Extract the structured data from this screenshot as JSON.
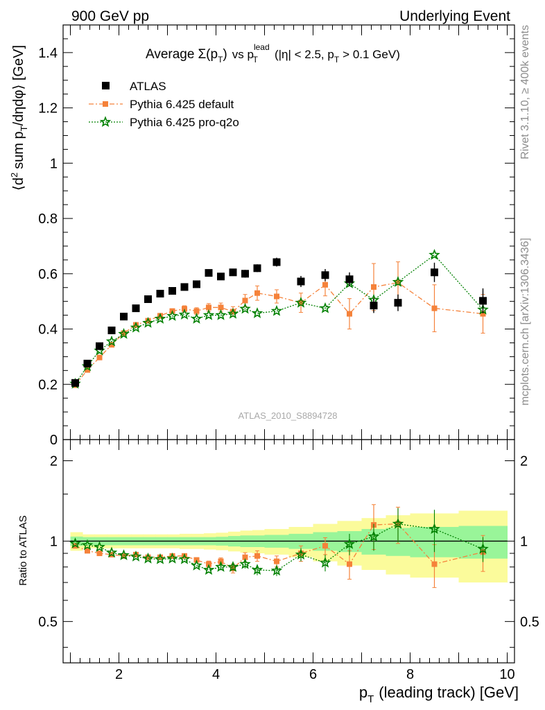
{
  "header": {
    "left_label": "900 GeV pp",
    "right_label": "Underlying Event"
  },
  "side_labels": {
    "rivet": "Rivet 3.1.10, ≥ 400k events",
    "mcplots": "mcplots.cern.ch [arXiv:1306.3436]"
  },
  "watermark": "ATLAS_2010_S8894728",
  "chart_data": [
    {
      "type": "scatter",
      "title": "Average Σ(pT) vs pT^lead (|η| < 2.5, pT > 0.1 GeV)",
      "title_parts": {
        "average": "Average",
        "sigma": "Σ(p",
        "sigma_sub": "T",
        "sigma_close": ")",
        "vs": "vs p",
        "vs_sup": "lead",
        "vs_sub": "T",
        "cuts_a": "(|η| < 2.5, p",
        "cuts_sub": "T",
        "cuts_b": "> 0.1 GeV)"
      },
      "ylabel": "⟨d² sum pT/dηdφ⟩ [GeV]",
      "ylabel_parts": {
        "a": "⟨d",
        "sup": "2",
        "b": "sum p",
        "sub": "T",
        "c": "/dηdφ⟩ [GeV]"
      },
      "xlim": [
        0.85,
        10.15
      ],
      "ylim": [
        0,
        1.5
      ],
      "y_ticks": [
        0,
        0.2,
        0.4,
        0.6,
        0.8,
        1,
        1.2,
        1.4
      ],
      "y_tick_labels": [
        "0",
        "0.2",
        "0.4",
        "0.6",
        "0.8",
        "1",
        "1.2",
        "1.4"
      ],
      "legend_position": "top-left",
      "series": [
        {
          "name": "ATLAS",
          "color": "#000000",
          "marker": "square",
          "x": [
            1.1,
            1.35,
            1.6,
            1.85,
            2.1,
            2.35,
            2.6,
            2.85,
            3.1,
            3.35,
            3.6,
            3.85,
            4.1,
            4.35,
            4.6,
            4.85,
            5.25,
            5.75,
            6.25,
            6.75,
            7.25,
            7.75,
            8.5,
            9.5
          ],
          "y": [
            0.205,
            0.275,
            0.338,
            0.395,
            0.445,
            0.475,
            0.508,
            0.528,
            0.538,
            0.552,
            0.562,
            0.603,
            0.59,
            0.605,
            0.6,
            0.62,
            0.642,
            0.572,
            0.595,
            0.58,
            0.485,
            0.495,
            0.605,
            0.502
          ],
          "err": [
            0.005,
            0.006,
            0.006,
            0.007,
            0.007,
            0.008,
            0.008,
            0.009,
            0.009,
            0.01,
            0.01,
            0.011,
            0.012,
            0.013,
            0.014,
            0.014,
            0.016,
            0.02,
            0.022,
            0.025,
            0.027,
            0.03,
            0.035,
            0.045
          ]
        },
        {
          "name": "Pythia 6.425 default",
          "color": "#f5823a",
          "marker": "square",
          "x": [
            1.1,
            1.35,
            1.6,
            1.85,
            2.1,
            2.35,
            2.6,
            2.85,
            3.1,
            3.35,
            3.6,
            3.85,
            4.1,
            4.35,
            4.6,
            4.85,
            5.25,
            5.75,
            6.25,
            6.75,
            7.25,
            7.75,
            8.5,
            9.5
          ],
          "y": [
            0.197,
            0.252,
            0.297,
            0.343,
            0.385,
            0.415,
            0.43,
            0.448,
            0.465,
            0.473,
            0.465,
            0.478,
            0.478,
            0.463,
            0.503,
            0.53,
            0.518,
            0.495,
            0.56,
            0.455,
            0.552,
            0.568,
            0.475,
            0.455
          ],
          "err": [
            0.003,
            0.004,
            0.005,
            0.006,
            0.006,
            0.007,
            0.008,
            0.009,
            0.01,
            0.011,
            0.012,
            0.014,
            0.016,
            0.018,
            0.022,
            0.026,
            0.024,
            0.035,
            0.04,
            0.055,
            0.085,
            0.075,
            0.085,
            0.07
          ]
        },
        {
          "name": "Pythia 6.425 pro-q2o",
          "color": "#008000",
          "marker": "star",
          "x": [
            1.1,
            1.35,
            1.6,
            1.85,
            2.1,
            2.35,
            2.6,
            2.85,
            3.1,
            3.35,
            3.6,
            3.85,
            4.1,
            4.35,
            4.6,
            4.85,
            5.25,
            5.75,
            6.25,
            6.75,
            7.25,
            7.75,
            8.5,
            9.5
          ],
          "y": [
            0.202,
            0.265,
            0.322,
            0.355,
            0.382,
            0.405,
            0.422,
            0.437,
            0.447,
            0.452,
            0.437,
            0.45,
            0.45,
            0.455,
            0.473,
            0.457,
            0.465,
            0.495,
            0.475,
            0.565,
            0.505,
            0.57,
            0.668,
            0.47
          ]
        }
      ]
    },
    {
      "type": "scatter",
      "ylabel": "Ratio to ATLAS",
      "xlabel": "pT (leading track) [GeV]",
      "xlabel_parts": {
        "a": "p",
        "sub": "T",
        "b": "(leading track) [GeV]"
      },
      "xlim": [
        0.85,
        10.15
      ],
      "ylim": [
        0.35,
        2.4
      ],
      "log_y": true,
      "x_ticks": [
        2,
        4,
        6,
        8,
        10
      ],
      "x_tick_labels": [
        "2",
        "4",
        "6",
        "8",
        "10"
      ],
      "y_ticks": [
        0.5,
        1,
        2
      ],
      "y_tick_labels": [
        "0.5",
        "1",
        "2"
      ],
      "bands": {
        "edges": [
          1.0,
          1.25,
          1.5,
          1.75,
          2.0,
          2.25,
          2.5,
          2.75,
          3.0,
          3.25,
          3.5,
          3.75,
          4.0,
          4.25,
          4.5,
          4.75,
          5.0,
          5.5,
          6.0,
          6.5,
          7.0,
          7.5,
          8.0,
          9.0,
          10.0
        ],
        "inner": [
          0.04,
          0.035,
          0.035,
          0.035,
          0.035,
          0.035,
          0.035,
          0.035,
          0.035,
          0.035,
          0.035,
          0.035,
          0.038,
          0.045,
          0.05,
          0.05,
          0.055,
          0.065,
          0.08,
          0.09,
          0.11,
          0.12,
          0.13,
          0.14
        ],
        "outer": [
          0.08,
          0.06,
          0.06,
          0.06,
          0.06,
          0.06,
          0.06,
          0.06,
          0.06,
          0.065,
          0.065,
          0.07,
          0.075,
          0.085,
          0.095,
          0.1,
          0.11,
          0.13,
          0.16,
          0.19,
          0.22,
          0.25,
          0.27,
          0.3
        ],
        "inner_color": "#99f599",
        "outer_color": "#fbfb9b"
      },
      "series": [
        {
          "name": "Pythia 6.425 default",
          "color": "#f5823a",
          "marker": "square",
          "x": [
            1.1,
            1.35,
            1.6,
            1.85,
            2.1,
            2.35,
            2.6,
            2.85,
            3.1,
            3.35,
            3.6,
            3.85,
            4.1,
            4.35,
            4.6,
            4.85,
            5.25,
            5.75,
            6.25,
            6.75,
            7.25,
            7.75,
            8.5,
            9.5
          ],
          "y": [
            0.96,
            0.92,
            0.9,
            0.89,
            0.88,
            0.89,
            0.87,
            0.87,
            0.88,
            0.88,
            0.85,
            0.82,
            0.84,
            0.79,
            0.87,
            0.88,
            0.84,
            0.9,
            0.96,
            0.82,
            1.15,
            1.16,
            0.82,
            0.91
          ],
          "err": [
            0.01,
            0.012,
            0.012,
            0.012,
            0.013,
            0.014,
            0.015,
            0.016,
            0.017,
            0.018,
            0.02,
            0.022,
            0.025,
            0.03,
            0.035,
            0.04,
            0.04,
            0.06,
            0.07,
            0.1,
            0.22,
            0.18,
            0.15,
            0.14
          ]
        },
        {
          "name": "Pythia 6.425 pro-q2o",
          "color": "#008000",
          "marker": "star",
          "x": [
            1.1,
            1.35,
            1.6,
            1.85,
            2.1,
            2.35,
            2.6,
            2.85,
            3.1,
            3.35,
            3.6,
            3.85,
            4.1,
            4.35,
            4.6,
            4.85,
            5.25,
            5.75,
            6.25,
            6.75,
            7.25,
            7.75,
            8.5,
            9.5
          ],
          "y": [
            0.98,
            0.965,
            0.95,
            0.905,
            0.885,
            0.875,
            0.86,
            0.855,
            0.86,
            0.855,
            0.81,
            0.78,
            0.8,
            0.8,
            0.82,
            0.78,
            0.775,
            0.89,
            0.83,
            0.975,
            1.04,
            1.16,
            1.11,
            0.935
          ],
          "err": [
            0.008,
            0.01,
            0.01,
            0.01,
            0.012,
            0.013,
            0.014,
            0.015,
            0.016,
            0.017,
            0.018,
            0.02,
            0.022,
            0.025,
            0.03,
            0.035,
            0.035,
            0.05,
            0.06,
            0.09,
            0.12,
            0.17,
            0.2,
            0.1
          ]
        }
      ]
    }
  ]
}
